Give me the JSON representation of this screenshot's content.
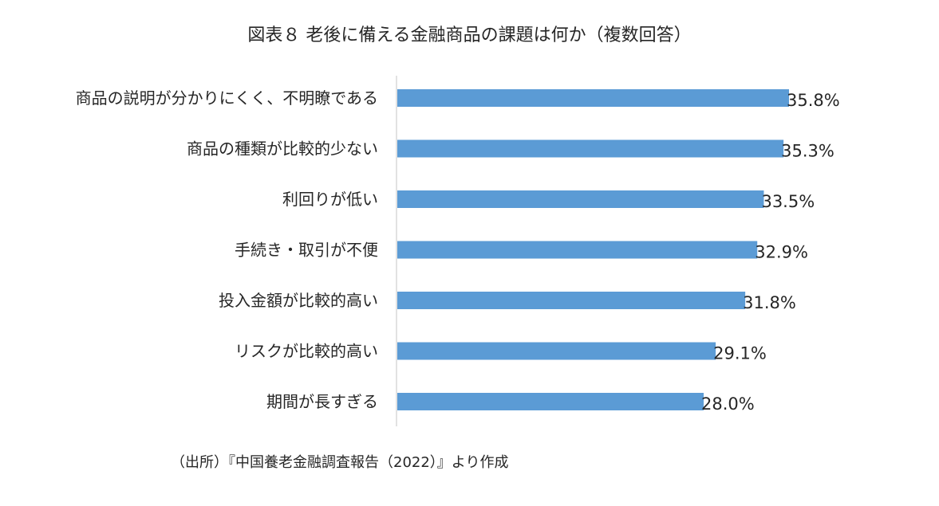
{
  "title": "図表８ 老後に備える金融商品の課題は何か（複数回答）",
  "source": "（出所）『中国養老金融調査報告（2022）』より作成",
  "chart_data": {
    "type": "bar",
    "orientation": "horizontal",
    "title": "図表８ 老後に備える金融商品の課題は何か（複数回答）",
    "categories": [
      "商品の説明が分かりにくく、不明瞭である",
      "商品の種類が比較的少ない",
      "利回りが低い",
      "手続き・取引が不便",
      "投入金額が比較的高い",
      "リスクが比較的高い",
      "期間が長すぎる"
    ],
    "values": [
      35.8,
      35.3,
      33.5,
      32.9,
      31.8,
      29.1,
      28.0
    ],
    "value_labels": [
      "35.8%",
      "35.3%",
      "33.5%",
      "32.9%",
      "31.8%",
      "29.1%",
      "28.0%"
    ],
    "unit": "%",
    "xlim": [
      0,
      40
    ],
    "grid": false,
    "legend": "none",
    "bar_color": "#5b9bd5"
  }
}
